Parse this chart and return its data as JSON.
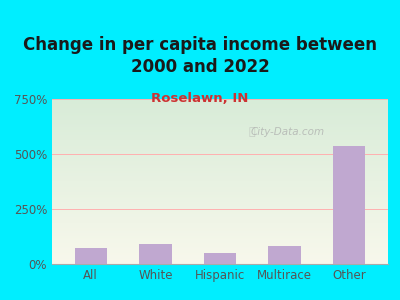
{
  "title": "Change in per capita income between\n2000 and 2022",
  "subtitle": "Roselawn, IN",
  "categories": [
    "All",
    "White",
    "Hispanic",
    "Multirace",
    "Other"
  ],
  "values": [
    75,
    90,
    50,
    80,
    535
  ],
  "bar_color": "#c0a8d0",
  "title_fontsize": 12,
  "subtitle_fontsize": 9.5,
  "subtitle_color": "#cc3333",
  "title_color": "#1a1a1a",
  "background_outer": "#00eeff",
  "ylim": [
    0,
    750
  ],
  "yticks": [
    0,
    250,
    500,
    750
  ],
  "ytick_labels": [
    "0%",
    "250%",
    "500%",
    "750%"
  ],
  "watermark": "City-Data.com",
  "tick_color": "#555555",
  "grid_color": "#ffb0b0",
  "plot_bg_top": "#d8ecd8",
  "plot_bg_bottom": "#f8f8ec"
}
